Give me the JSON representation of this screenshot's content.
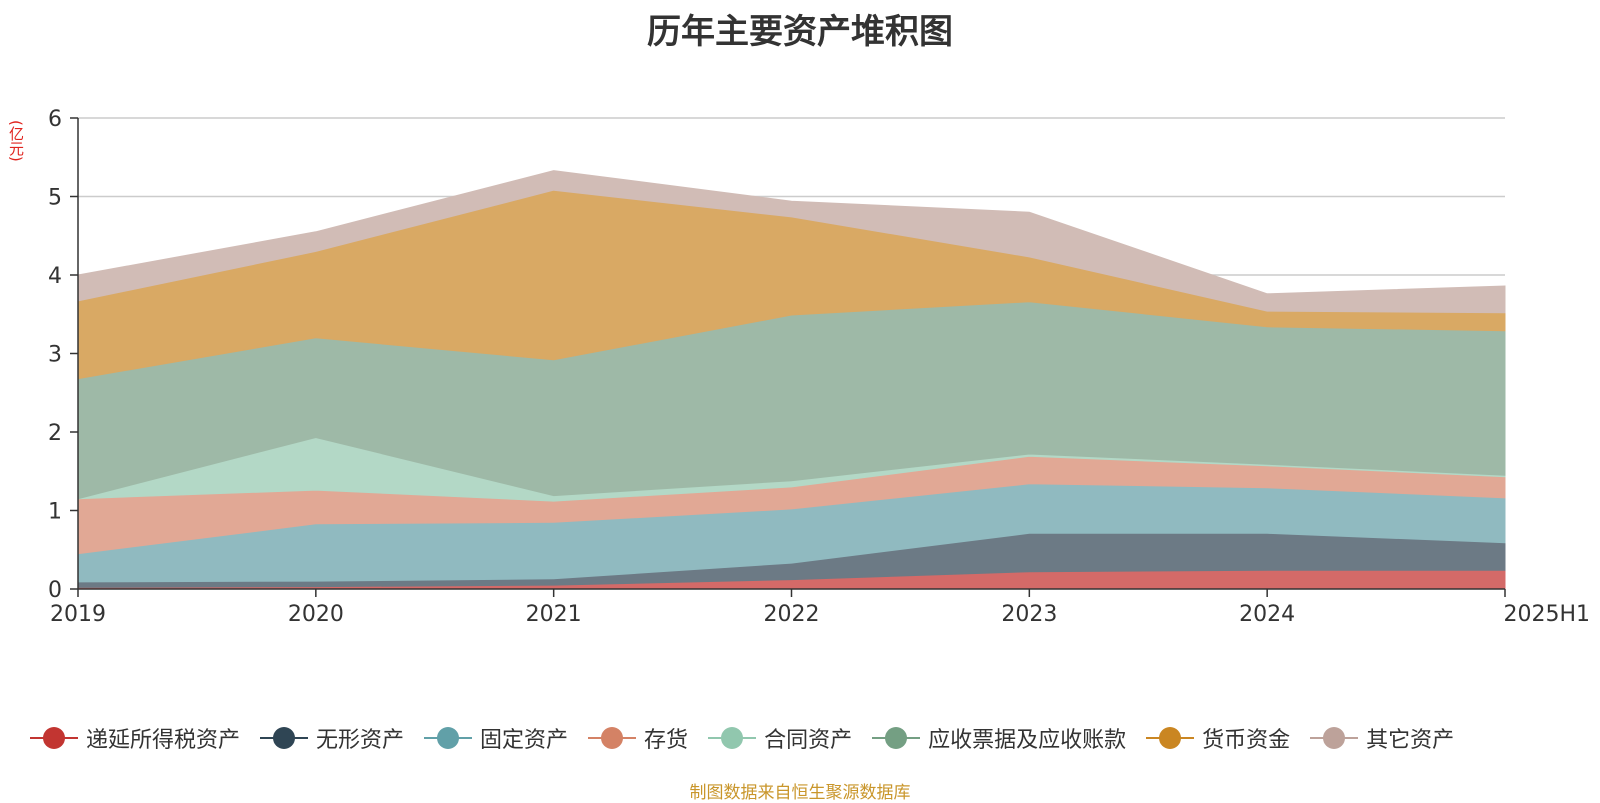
{
  "title": "历年主要资产堆积图",
  "unit": "(亿元)",
  "source": "制图数据来自恒生聚源数据库",
  "colors": {
    "unit": "#e0241f",
    "source": "#c9962b"
  },
  "chart_data": {
    "type": "area",
    "stacked": true,
    "categories": [
      "2019",
      "2020",
      "2021",
      "2022",
      "2023",
      "2024",
      "2025H1"
    ],
    "ylim": [
      0,
      6
    ],
    "yticks": [
      0,
      1,
      2,
      3,
      4,
      5,
      6
    ],
    "ylabel": "(亿元)",
    "grid": true,
    "legend_position": "bottom",
    "series": [
      {
        "name": "递延所得税资产",
        "color": "#c23531",
        "fill": "#d46a68",
        "values": [
          0.02,
          0.03,
          0.05,
          0.12,
          0.22,
          0.24,
          0.24
        ]
      },
      {
        "name": "无形资产",
        "color": "#2f4554",
        "fill": "#6c7a85",
        "values": [
          0.07,
          0.07,
          0.08,
          0.21,
          0.49,
          0.47,
          0.35
        ]
      },
      {
        "name": "固定资产",
        "color": "#61a0a8",
        "fill": "#90bac0",
        "values": [
          0.36,
          0.73,
          0.72,
          0.69,
          0.63,
          0.58,
          0.57
        ]
      },
      {
        "name": "存货",
        "color": "#d48265",
        "fill": "#e1a895",
        "values": [
          0.7,
          0.43,
          0.27,
          0.28,
          0.35,
          0.28,
          0.27
        ]
      },
      {
        "name": "合同资产",
        "color": "#91c7ae",
        "fill": "#b3d8c6",
        "values": [
          0.0,
          0.67,
          0.07,
          0.08,
          0.03,
          0.02,
          0.02
        ]
      },
      {
        "name": "应收票据及应收账款",
        "color": "#749f83",
        "fill": "#9eb9a7",
        "values": [
          1.53,
          1.27,
          1.73,
          2.11,
          1.94,
          1.75,
          1.84
        ]
      },
      {
        "name": "货币资金",
        "color": "#ca8622",
        "fill": "#d9a964",
        "values": [
          0.99,
          1.1,
          2.16,
          1.25,
          0.57,
          0.2,
          0.23
        ]
      },
      {
        "name": "其它资产",
        "color": "#bda29a",
        "fill": "#d1bcb6",
        "values": [
          0.33,
          0.25,
          0.25,
          0.2,
          0.57,
          0.22,
          0.34
        ]
      }
    ]
  }
}
